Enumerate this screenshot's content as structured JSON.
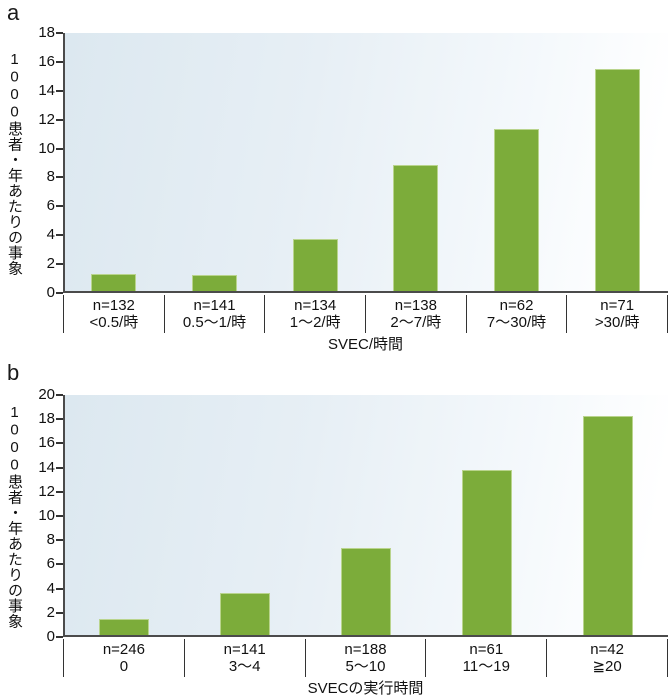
{
  "colors": {
    "bar_fill": "#7cac3a",
    "bar_edge": "#b9d48d",
    "axis_line": "#4b4b4b",
    "tick_divider": "#333333",
    "text": "#111111",
    "plot_bg_left": "#dce8f0",
    "plot_bg_mid": "#e7eff5",
    "plot_bg_right": "#ffffff"
  },
  "chart_data": [
    {
      "type": "bar",
      "panel_label": "a",
      "title": "",
      "ylabel": "1000患者・年あたりの事象",
      "xlabel": "SVEC/時間",
      "ylim": [
        0,
        18
      ],
      "yticks": [
        0,
        2,
        4,
        6,
        8,
        10,
        12,
        14,
        16,
        18
      ],
      "grid": false,
      "legend": "none",
      "categories": [
        {
          "n": "n=132",
          "range": "<0.5/時"
        },
        {
          "n": "n=141",
          "range": "0.5〜1/時"
        },
        {
          "n": "n=134",
          "range": "1〜2/時"
        },
        {
          "n": "n=138",
          "range": "2〜7/時"
        },
        {
          "n": "n=62",
          "range": "7〜30/時"
        },
        {
          "n": "n=71",
          "range": ">30/時"
        }
      ],
      "values": [
        1.2,
        1.1,
        3.6,
        8.7,
        11.2,
        15.4
      ]
    },
    {
      "type": "bar",
      "panel_label": "b",
      "title": "",
      "ylabel": "1000患者・年あたりの事象",
      "xlabel": "SVECの実行時間",
      "ylim": [
        0,
        20
      ],
      "yticks": [
        0,
        2,
        4,
        6,
        8,
        10,
        12,
        14,
        16,
        18,
        20
      ],
      "grid": false,
      "legend": "none",
      "categories": [
        {
          "n": "n=246",
          "range": "0"
        },
        {
          "n": "n=141",
          "range": "3〜4"
        },
        {
          "n": "n=188",
          "range": "5〜10"
        },
        {
          "n": "n=61",
          "range": "11〜19"
        },
        {
          "n": "n=42",
          "range": "≧20"
        }
      ],
      "values": [
        1.3,
        3.5,
        7.2,
        13.6,
        18.1
      ]
    }
  ]
}
